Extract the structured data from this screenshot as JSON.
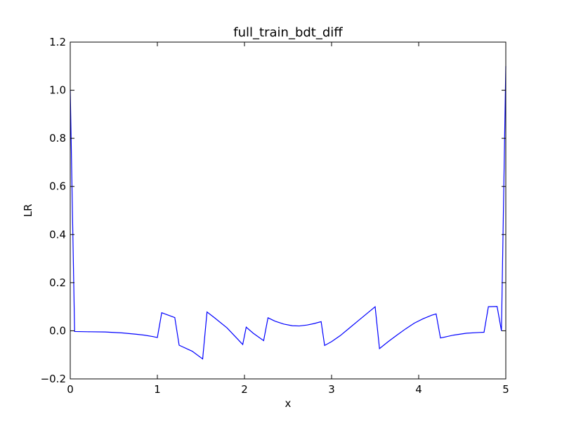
{
  "chart_data": {
    "type": "line",
    "title": "full_train_bdt_diff",
    "xlabel": "x",
    "ylabel": "LR",
    "xlim": [
      0,
      5
    ],
    "ylim": [
      -0.2,
      1.2
    ],
    "xticks": [
      0,
      1,
      2,
      3,
      4,
      5
    ],
    "xtick_labels": [
      "0",
      "1",
      "2",
      "3",
      "4",
      "5"
    ],
    "yticks": [
      -0.2,
      0.0,
      0.2,
      0.4,
      0.6,
      0.8,
      1.0,
      1.2
    ],
    "ytick_labels": [
      "−0.2",
      "0.0",
      "0.2",
      "0.4",
      "0.6",
      "0.8",
      "1.0",
      "1.2"
    ],
    "grid": false,
    "legend": "none",
    "line_color": "#0000ff",
    "series": [
      {
        "x": [
          0.0,
          0.05,
          0.2,
          0.4,
          0.6,
          0.75,
          0.85,
          0.95,
          1.0,
          1.05,
          1.2,
          1.25,
          1.4,
          1.52,
          1.57,
          1.65,
          1.8,
          1.98,
          2.02,
          2.1,
          2.22,
          2.27,
          2.35,
          2.45,
          2.55,
          2.63,
          2.72,
          2.8,
          2.88,
          2.92,
          3.0,
          3.1,
          3.2,
          3.3,
          3.4,
          3.5,
          3.55,
          3.65,
          3.75,
          3.85,
          3.95,
          4.05,
          4.15,
          4.2,
          4.25,
          4.4,
          4.55,
          4.7,
          4.75,
          4.8,
          4.9,
          4.95,
          5.0
        ],
        "y": [
          1.0,
          -0.003,
          -0.004,
          -0.005,
          -0.009,
          -0.014,
          -0.018,
          -0.024,
          -0.028,
          0.075,
          0.055,
          -0.06,
          -0.085,
          -0.117,
          0.078,
          0.056,
          0.012,
          -0.057,
          0.015,
          -0.01,
          -0.041,
          0.054,
          0.04,
          0.028,
          0.021,
          0.02,
          0.024,
          0.03,
          0.038,
          -0.061,
          -0.045,
          -0.02,
          0.01,
          0.04,
          0.07,
          0.1,
          -0.074,
          -0.045,
          -0.018,
          0.008,
          0.032,
          0.05,
          0.065,
          0.07,
          -0.03,
          -0.018,
          -0.01,
          -0.007,
          -0.006,
          0.1,
          0.101,
          0.0,
          1.1
        ]
      }
    ]
  }
}
